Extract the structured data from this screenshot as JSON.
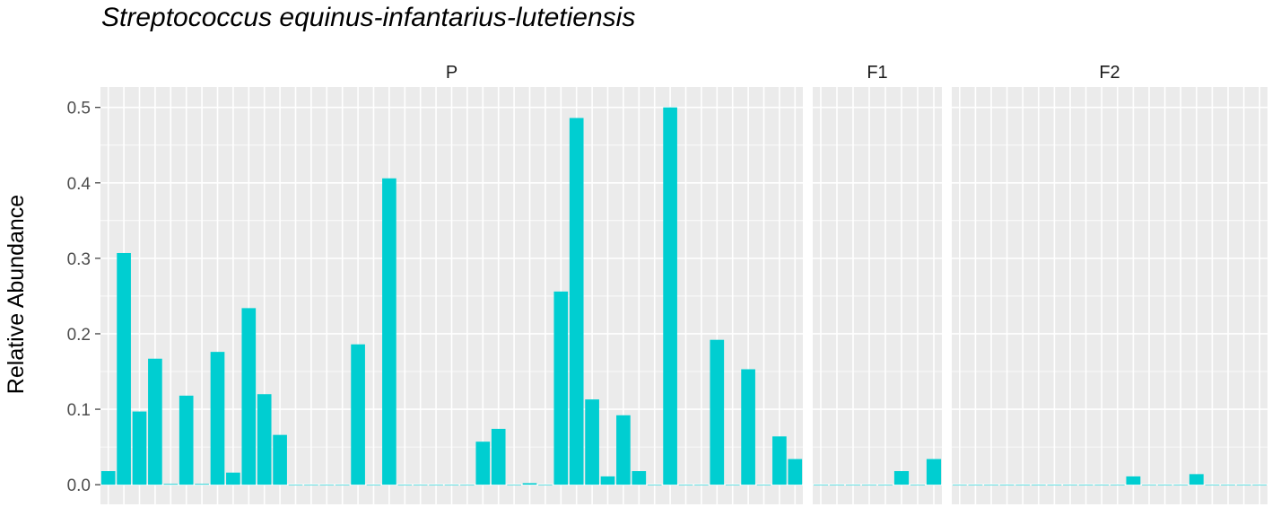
{
  "chart_data": {
    "type": "bar",
    "title": "Streptococcus equinus-infantarius-lutetiensis",
    "ylabel": "Relative Abundance",
    "xlabel": "",
    "ylim": [
      -0.026,
      0.527
    ],
    "yticks": [
      "0.0",
      "0.1",
      "0.2",
      "0.3",
      "0.4",
      "0.5"
    ],
    "ytick_values": [
      0,
      0.1,
      0.2,
      0.3,
      0.4,
      0.5
    ],
    "grid": true,
    "bar_color": "#00CED1",
    "panel_background": "#EBEBEB",
    "grid_color": "#FFFFFF",
    "facets": [
      {
        "name": "P",
        "values": [
          0.018,
          0.307,
          0.097,
          0.167,
          0.001,
          0.118,
          0.001,
          0.176,
          0.016,
          0.234,
          0.12,
          0.066,
          0,
          0,
          0,
          0,
          0.186,
          0,
          0.406,
          0,
          0,
          0,
          0,
          0,
          0.057,
          0.074,
          0,
          0.002,
          0,
          0.256,
          0.486,
          0.113,
          0.011,
          0.092,
          0.018,
          0,
          0.5,
          0,
          0,
          0.192,
          0,
          0.153,
          0,
          0.064,
          0.034
        ]
      },
      {
        "name": "F1",
        "values": [
          0,
          0,
          0,
          0,
          0,
          0.018,
          0,
          0.034
        ]
      },
      {
        "name": "F2",
        "values": [
          0,
          0,
          0,
          0,
          0,
          0,
          0,
          0,
          0,
          0,
          0,
          0.011,
          0,
          0,
          0,
          0.014,
          0,
          0,
          0,
          0
        ]
      }
    ]
  }
}
